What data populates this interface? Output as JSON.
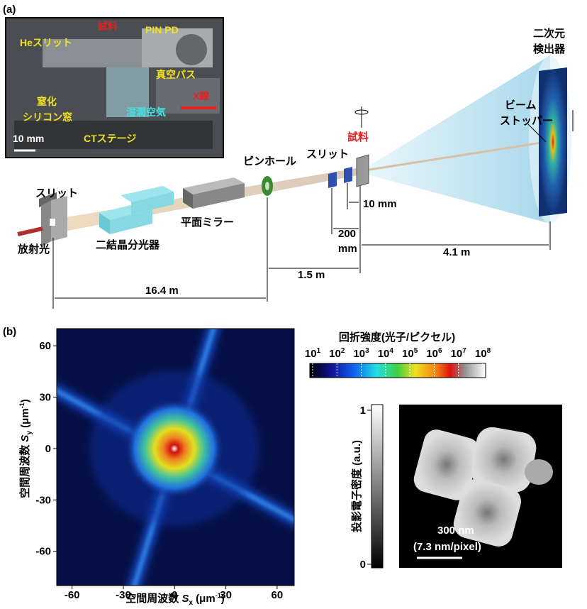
{
  "panel_a": {
    "label": "(a)",
    "photo_labels": {
      "sample": "試料",
      "pin_pd": "PIN PD",
      "he_slit": "Heスリット",
      "vacuum_path": "真空パス",
      "nitride_1": "窒化",
      "nitride_2": "シリコン窓",
      "humid_air": "湿潤空気",
      "xray": "X線",
      "scale": "10 mm",
      "ct_stage": "CTステージ"
    },
    "components": {
      "detector": [
        "二次元",
        "検出器"
      ],
      "beam_stopper": [
        "ビーム",
        "ストッパー"
      ],
      "sample": "試料",
      "slit_2": "スリット",
      "pinhole": "ピンホール",
      "slit_1": "スリット",
      "source": "放射光",
      "monochromator": "二結晶分光器",
      "mirror": "平面ミラー"
    },
    "distances": {
      "slit_sample": "10 mm",
      "slit_slit": [
        "200",
        "mm"
      ],
      "sample_detector": "4.1 m",
      "pinhole_sample": "1.5 m",
      "slit_pinhole": "16.4 m"
    }
  },
  "panel_b": {
    "label": "(b)",
    "diffraction": {
      "xlim": [
        -69,
        70
      ],
      "ylim": [
        -80,
        70
      ],
      "xticks": [
        -60,
        -30,
        0,
        30,
        60
      ],
      "yticks": [
        -60,
        -30,
        0,
        30,
        60
      ],
      "xlabel": {
        "prefix": "空間周波数 ",
        "symbol": "S",
        "subscript": "x",
        "unit": " (μm",
        "unit_exp": "-1",
        "suffix": ")"
      },
      "ylabel": {
        "prefix": "空間周波数 ",
        "symbol": "S",
        "subscript": "y",
        "unit": " (μm",
        "unit_exp": "-1",
        "suffix": ")"
      }
    },
    "colorbar": {
      "title": "回折強度(光子/ピクセル)",
      "base": "10",
      "exponents": [
        1,
        2,
        3,
        4,
        5,
        6,
        7,
        8
      ]
    },
    "density": {
      "label": "投影電子密度 (a.u.)",
      "ylim": [
        0,
        1
      ],
      "ticks": [
        0,
        1
      ],
      "scale_bar": "300 nm",
      "pixel_size": "(7.3 nm/pixel)"
    }
  }
}
